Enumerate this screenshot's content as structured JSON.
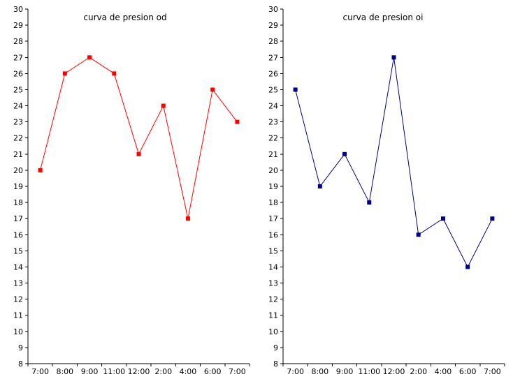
{
  "chart_data": [
    {
      "type": "line",
      "title": "curva de presion od",
      "xlabel": "",
      "ylabel": "",
      "categories": [
        "7:00",
        "8:00",
        "9:00",
        "11:00",
        "12:00",
        "2:00",
        "4:00",
        "6:00",
        "7:00"
      ],
      "series": [
        {
          "values": [
            20,
            26,
            27,
            26,
            21,
            24,
            17,
            25,
            23
          ],
          "color": "#ff0000",
          "marker": "square"
        }
      ],
      "ylim": [
        8,
        30
      ],
      "yticks": [
        8,
        9,
        10,
        11,
        12,
        13,
        14,
        15,
        16,
        17,
        18,
        19,
        20,
        21,
        22,
        23,
        24,
        25,
        26,
        27,
        28,
        29,
        30
      ],
      "grid": false,
      "legend": "none"
    },
    {
      "type": "line",
      "title": "curva de presion oi",
      "xlabel": "",
      "ylabel": "",
      "categories": [
        "7:00",
        "8:00",
        "9:00",
        "11:00",
        "12:00",
        "2:00",
        "4:00",
        "6:00",
        "7:00"
      ],
      "series": [
        {
          "values": [
            25,
            19,
            21,
            18,
            27,
            16,
            17,
            14,
            17
          ],
          "color": "#000080",
          "marker": "square"
        }
      ],
      "ylim": [
        8,
        30
      ],
      "yticks": [
        8,
        9,
        10,
        11,
        12,
        13,
        14,
        15,
        16,
        17,
        18,
        19,
        20,
        21,
        22,
        23,
        24,
        25,
        26,
        27,
        28,
        29,
        30
      ],
      "grid": false,
      "legend": "none"
    }
  ]
}
